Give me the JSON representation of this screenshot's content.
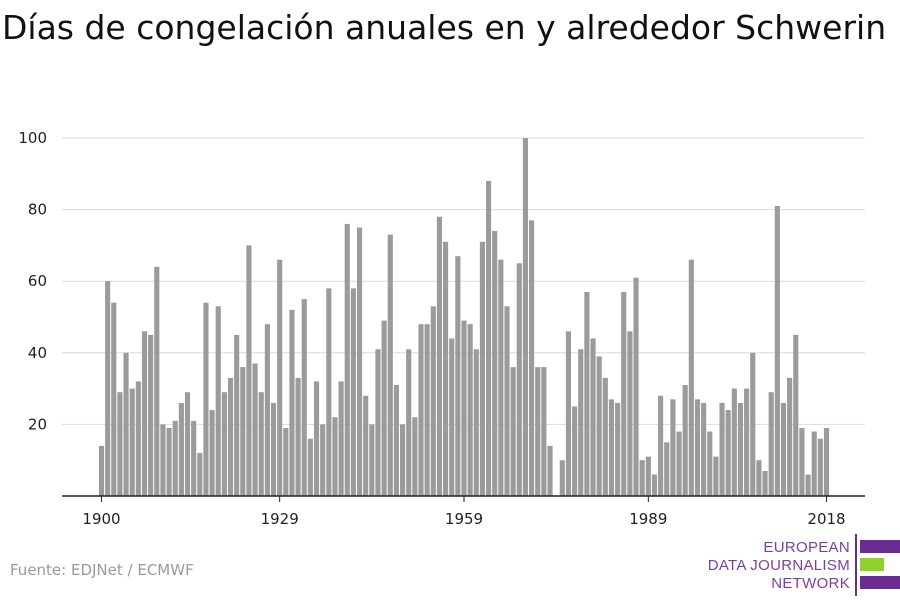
{
  "title": "Días de congelación anuales en y alrededor Schwerin",
  "source": "Fuente: EDJNet / ECMWF",
  "logo": {
    "line1": "EUROPEAN",
    "line2": "DATA JOURNALISM",
    "line3": "NETWORK"
  },
  "colors": {
    "bar": "#9b9b9b",
    "grid": "#dcdcdc",
    "axis": "#222222",
    "logo_purple": "#6a2c91",
    "logo_green": "#8fd12a"
  },
  "chart_data": {
    "type": "bar",
    "x_start": 1900,
    "x_end": 2018,
    "x_ticks": [
      1900,
      1929,
      1959,
      1989,
      2018
    ],
    "y_ticks": [
      20,
      40,
      60,
      80,
      100
    ],
    "ylim": [
      0,
      100
    ],
    "grid": true,
    "values": [
      14,
      60,
      54,
      29,
      40,
      30,
      32,
      46,
      45,
      64,
      20,
      19,
      21,
      26,
      29,
      21,
      12,
      54,
      24,
      53,
      29,
      33,
      45,
      36,
      70,
      37,
      29,
      48,
      26,
      66,
      19,
      52,
      33,
      55,
      16,
      32,
      20,
      58,
      22,
      32,
      76,
      58,
      75,
      28,
      20,
      41,
      49,
      73,
      31,
      20,
      41,
      22,
      48,
      48,
      53,
      78,
      71,
      44,
      67,
      49,
      48,
      41,
      71,
      88,
      74,
      66,
      53,
      36,
      65,
      100,
      77,
      36,
      36,
      14,
      0,
      10,
      46,
      25,
      41,
      57,
      44,
      39,
      33,
      27,
      26,
      57,
      46,
      61,
      10,
      11,
      6,
      28,
      15,
      27,
      18,
      31,
      66,
      27,
      26,
      18,
      11,
      26,
      24,
      30,
      26,
      30,
      40,
      10,
      7,
      29,
      81,
      26,
      33,
      45,
      19,
      6,
      18,
      16,
      19
    ]
  }
}
